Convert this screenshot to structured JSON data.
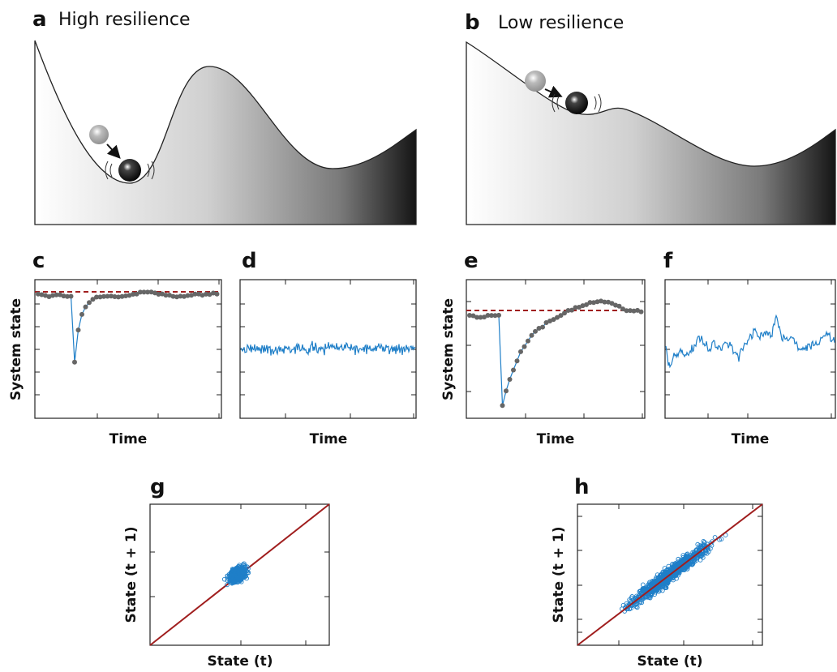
{
  "panels": [
    {
      "letter": "a",
      "title": "High resilience"
    },
    {
      "letter": "b",
      "title": "Low resilience"
    },
    {
      "letter": "c",
      "y_label": "System state",
      "x_label": "Time"
    },
    {
      "letter": "d",
      "x_label": "Time"
    },
    {
      "letter": "e",
      "y_label": "System state",
      "x_label": "Time"
    },
    {
      "letter": "f",
      "x_label": "Time"
    },
    {
      "letter": "g",
      "y_label": "State (t + 1)",
      "x_label": "State (t)"
    },
    {
      "letter": "h",
      "y_label": "State (t + 1)",
      "x_label": "State (t)"
    }
  ]
}
